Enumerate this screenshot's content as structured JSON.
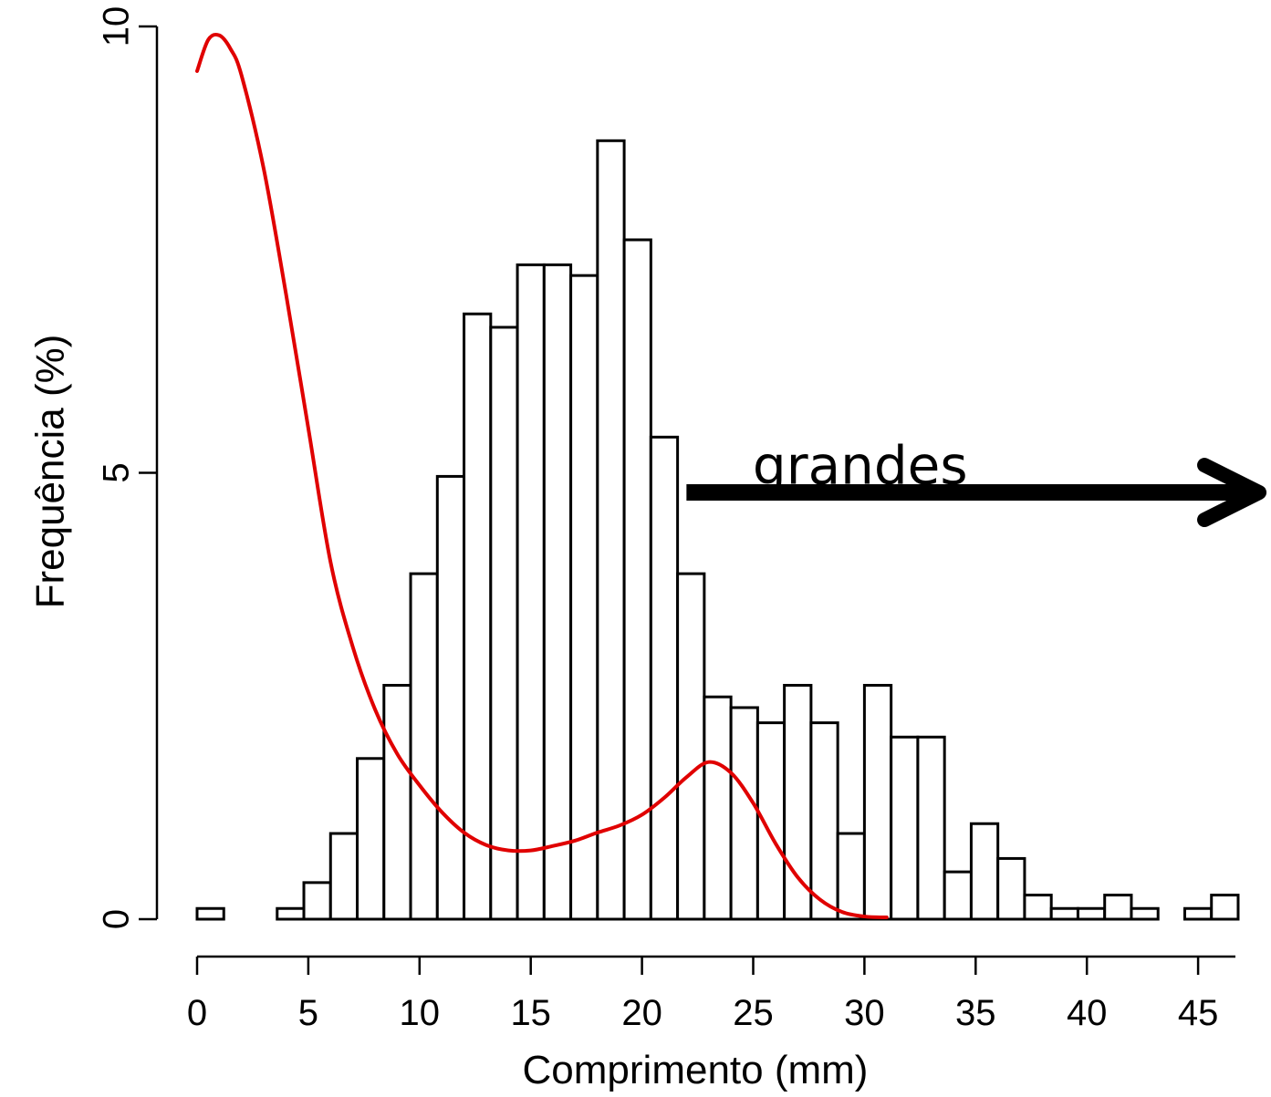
{
  "chart_data": {
    "type": "bar",
    "xlabel": "Comprimento (mm)",
    "ylabel": "Frequência (%)",
    "xlim": [
      0,
      46.5
    ],
    "ylim": [
      0,
      10
    ],
    "x_ticks": [
      "0",
      "5",
      "10",
      "15",
      "20",
      "25",
      "30",
      "35",
      "40",
      "45"
    ],
    "y_ticks": [
      "0",
      "5",
      "10"
    ],
    "bin_width": 1.2,
    "bins_start": [
      0,
      1.2,
      2.4,
      3.6,
      4.8,
      6.0,
      7.2,
      8.4,
      9.6,
      10.8,
      12.0,
      13.2,
      14.4,
      15.6,
      16.8,
      18.0,
      19.2,
      20.4,
      21.6,
      22.8,
      24.0,
      25.2,
      26.4,
      27.6,
      28.8,
      30.0,
      31.2,
      32.4,
      33.6,
      34.8,
      36.0,
      37.2,
      38.4,
      39.6,
      40.8,
      42.0,
      43.2,
      44.4,
      45.6
    ],
    "values": [
      0.12,
      0.0,
      0.0,
      0.12,
      0.41,
      0.96,
      1.8,
      2.62,
      3.87,
      4.96,
      6.78,
      6.63,
      7.33,
      7.33,
      7.21,
      8.72,
      7.61,
      5.4,
      3.87,
      2.49,
      2.37,
      2.2,
      2.62,
      2.2,
      0.96,
      2.62,
      2.04,
      2.04,
      0.53,
      1.07,
      0.68,
      0.27,
      0.12,
      0.12,
      0.27,
      0.12,
      0.0,
      0.12,
      0.27
    ],
    "density_curve": {
      "color": "#e00000",
      "x": [
        0,
        0.5,
        1,
        1.5,
        2,
        3,
        4,
        5,
        6,
        7,
        8,
        9,
        10,
        11,
        12,
        13,
        14,
        15,
        16,
        17,
        18,
        19,
        20,
        21,
        22,
        23,
        24,
        25,
        26,
        27,
        28,
        29,
        30,
        31
      ],
      "y": [
        9.5,
        9.85,
        9.9,
        9.75,
        9.45,
        8.4,
        7.0,
        5.5,
        4.0,
        3.05,
        2.35,
        1.85,
        1.5,
        1.2,
        0.97,
        0.83,
        0.77,
        0.77,
        0.82,
        0.88,
        0.97,
        1.05,
        1.17,
        1.36,
        1.59,
        1.76,
        1.64,
        1.3,
        0.85,
        0.47,
        0.22,
        0.08,
        0.03,
        0.02
      ]
    },
    "annotations": [
      {
        "text": "grandes",
        "x": 34,
        "y": 5.1
      }
    ],
    "arrow": {
      "from_x": 22,
      "to_x": 47.5,
      "y": 4.78
    }
  }
}
